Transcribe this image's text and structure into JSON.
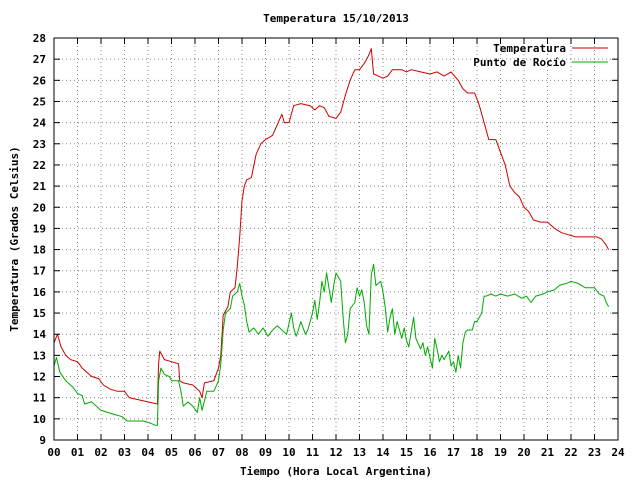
{
  "chart_data": {
    "type": "line",
    "title": "Temperatura 15/10/2013",
    "xlabel": "Tiempo (Hora Local Argentina)",
    "ylabel": "Temperatura (Grados Celsius)",
    "xlim": [
      0,
      24
    ],
    "ylim": [
      9,
      28
    ],
    "grid": true,
    "legend_position": "top-right",
    "x_tick_labels": [
      "00",
      "01",
      "02",
      "03",
      "04",
      "05",
      "06",
      "07",
      "08",
      "09",
      "10",
      "11",
      "12",
      "13",
      "14",
      "15",
      "16",
      "17",
      "18",
      "19",
      "20",
      "21",
      "22",
      "23",
      "24"
    ],
    "y_tick_labels": [
      "9",
      "10",
      "11",
      "12",
      "13",
      "14",
      "15",
      "16",
      "17",
      "18",
      "19",
      "20",
      "21",
      "22",
      "23",
      "24",
      "25",
      "26",
      "27",
      "28"
    ],
    "series": [
      {
        "name": "Temperatura",
        "color": "#cc0000",
        "points": [
          [
            0.0,
            13.6
          ],
          [
            0.15,
            14.0
          ],
          [
            0.3,
            13.4
          ],
          [
            0.5,
            13.0
          ],
          [
            0.7,
            12.8
          ],
          [
            1.0,
            12.7
          ],
          [
            1.2,
            12.4
          ],
          [
            1.4,
            12.2
          ],
          [
            1.6,
            12.0
          ],
          [
            1.9,
            11.9
          ],
          [
            2.1,
            11.6
          ],
          [
            2.4,
            11.4
          ],
          [
            2.7,
            11.3
          ],
          [
            3.0,
            11.3
          ],
          [
            3.2,
            11.0
          ],
          [
            3.6,
            10.9
          ],
          [
            4.0,
            10.8
          ],
          [
            4.4,
            10.7
          ],
          [
            4.45,
            12.6
          ],
          [
            4.5,
            13.2
          ],
          [
            4.7,
            12.8
          ],
          [
            5.0,
            12.7
          ],
          [
            5.3,
            12.6
          ],
          [
            5.35,
            11.8
          ],
          [
            5.5,
            11.7
          ],
          [
            5.9,
            11.6
          ],
          [
            6.2,
            11.3
          ],
          [
            6.3,
            11.0
          ],
          [
            6.4,
            11.7
          ],
          [
            6.8,
            11.8
          ],
          [
            7.0,
            12.4
          ],
          [
            7.1,
            13.0
          ],
          [
            7.2,
            14.9
          ],
          [
            7.4,
            15.3
          ],
          [
            7.5,
            16.0
          ],
          [
            7.7,
            16.2
          ],
          [
            7.8,
            17.2
          ],
          [
            7.9,
            18.6
          ],
          [
            8.0,
            20.3
          ],
          [
            8.1,
            21.0
          ],
          [
            8.2,
            21.3
          ],
          [
            8.4,
            21.4
          ],
          [
            8.6,
            22.5
          ],
          [
            8.8,
            23.0
          ],
          [
            9.0,
            23.2
          ],
          [
            9.3,
            23.4
          ],
          [
            9.5,
            23.9
          ],
          [
            9.7,
            24.4
          ],
          [
            9.8,
            24.0
          ],
          [
            10.0,
            24.0
          ],
          [
            10.2,
            24.8
          ],
          [
            10.5,
            24.9
          ],
          [
            10.9,
            24.8
          ],
          [
            11.1,
            24.6
          ],
          [
            11.3,
            24.8
          ],
          [
            11.5,
            24.7
          ],
          [
            11.7,
            24.3
          ],
          [
            12.0,
            24.2
          ],
          [
            12.2,
            24.5
          ],
          [
            12.4,
            25.3
          ],
          [
            12.6,
            26.0
          ],
          [
            12.8,
            26.5
          ],
          [
            13.0,
            26.5
          ],
          [
            13.2,
            26.8
          ],
          [
            13.3,
            27.0
          ],
          [
            13.4,
            27.2
          ],
          [
            13.5,
            27.5
          ],
          [
            13.6,
            26.3
          ],
          [
            13.8,
            26.2
          ],
          [
            14.0,
            26.1
          ],
          [
            14.2,
            26.2
          ],
          [
            14.4,
            26.5
          ],
          [
            14.8,
            26.5
          ],
          [
            15.0,
            26.4
          ],
          [
            15.2,
            26.5
          ],
          [
            15.6,
            26.4
          ],
          [
            16.0,
            26.3
          ],
          [
            16.3,
            26.4
          ],
          [
            16.6,
            26.2
          ],
          [
            16.9,
            26.4
          ],
          [
            17.2,
            26.0
          ],
          [
            17.4,
            25.6
          ],
          [
            17.6,
            25.4
          ],
          [
            17.9,
            25.4
          ],
          [
            18.1,
            24.8
          ],
          [
            18.3,
            24.0
          ],
          [
            18.5,
            23.2
          ],
          [
            18.8,
            23.2
          ],
          [
            19.0,
            22.6
          ],
          [
            19.2,
            22.0
          ],
          [
            19.4,
            21.0
          ],
          [
            19.6,
            20.7
          ],
          [
            19.8,
            20.5
          ],
          [
            20.0,
            20.0
          ],
          [
            20.2,
            19.8
          ],
          [
            20.4,
            19.4
          ],
          [
            20.7,
            19.3
          ],
          [
            21.0,
            19.3
          ],
          [
            21.3,
            19.0
          ],
          [
            21.6,
            18.8
          ],
          [
            21.9,
            18.7
          ],
          [
            22.2,
            18.6
          ],
          [
            22.5,
            18.6
          ],
          [
            22.8,
            18.6
          ],
          [
            23.1,
            18.6
          ],
          [
            23.3,
            18.5
          ],
          [
            23.5,
            18.2
          ],
          [
            23.6,
            18.0
          ]
        ]
      },
      {
        "name": "Punto de Rocío",
        "color": "#00aa00",
        "points": [
          [
            0.0,
            12.5
          ],
          [
            0.1,
            12.9
          ],
          [
            0.25,
            12.2
          ],
          [
            0.5,
            11.8
          ],
          [
            0.8,
            11.5
          ],
          [
            1.0,
            11.2
          ],
          [
            1.2,
            11.1
          ],
          [
            1.3,
            10.7
          ],
          [
            1.6,
            10.8
          ],
          [
            1.8,
            10.6
          ],
          [
            2.0,
            10.4
          ],
          [
            2.3,
            10.3
          ],
          [
            2.6,
            10.2
          ],
          [
            2.9,
            10.1
          ],
          [
            3.1,
            9.9
          ],
          [
            3.5,
            9.9
          ],
          [
            3.8,
            9.9
          ],
          [
            4.1,
            9.8
          ],
          [
            4.3,
            9.7
          ],
          [
            4.4,
            9.7
          ],
          [
            4.45,
            11.8
          ],
          [
            4.55,
            12.4
          ],
          [
            4.7,
            12.1
          ],
          [
            4.9,
            12.0
          ],
          [
            5.0,
            11.8
          ],
          [
            5.3,
            11.8
          ],
          [
            5.4,
            11.3
          ],
          [
            5.5,
            10.6
          ],
          [
            5.7,
            10.8
          ],
          [
            5.9,
            10.6
          ],
          [
            6.1,
            10.3
          ],
          [
            6.2,
            11.0
          ],
          [
            6.3,
            10.4
          ],
          [
            6.5,
            11.3
          ],
          [
            6.8,
            11.3
          ],
          [
            7.0,
            11.8
          ],
          [
            7.1,
            12.6
          ],
          [
            7.2,
            14.2
          ],
          [
            7.3,
            15.0
          ],
          [
            7.5,
            15.2
          ],
          [
            7.6,
            15.8
          ],
          [
            7.8,
            16.0
          ],
          [
            7.9,
            16.4
          ],
          [
            8.0,
            15.8
          ],
          [
            8.1,
            15.4
          ],
          [
            8.2,
            14.6
          ],
          [
            8.3,
            14.1
          ],
          [
            8.5,
            14.3
          ],
          [
            8.7,
            14.0
          ],
          [
            8.9,
            14.3
          ],
          [
            9.1,
            13.9
          ],
          [
            9.3,
            14.2
          ],
          [
            9.5,
            14.4
          ],
          [
            9.7,
            14.2
          ],
          [
            9.9,
            14.0
          ],
          [
            10.0,
            14.5
          ],
          [
            10.1,
            15.0
          ],
          [
            10.2,
            14.3
          ],
          [
            10.3,
            13.9
          ],
          [
            10.4,
            14.2
          ],
          [
            10.5,
            14.6
          ],
          [
            10.7,
            14.0
          ],
          [
            10.8,
            14.2
          ],
          [
            11.0,
            15.0
          ],
          [
            11.1,
            15.6
          ],
          [
            11.2,
            14.7
          ],
          [
            11.3,
            15.5
          ],
          [
            11.4,
            16.5
          ],
          [
            11.5,
            16.0
          ],
          [
            11.6,
            16.9
          ],
          [
            11.7,
            16.2
          ],
          [
            11.8,
            15.5
          ],
          [
            11.9,
            16.3
          ],
          [
            12.0,
            16.9
          ],
          [
            12.2,
            16.5
          ],
          [
            12.3,
            14.8
          ],
          [
            12.4,
            13.6
          ],
          [
            12.5,
            14.0
          ],
          [
            12.6,
            15.2
          ],
          [
            12.8,
            15.5
          ],
          [
            12.9,
            16.2
          ],
          [
            13.0,
            15.8
          ],
          [
            13.1,
            16.1
          ],
          [
            13.2,
            15.5
          ],
          [
            13.3,
            14.4
          ],
          [
            13.4,
            14.0
          ],
          [
            13.5,
            16.8
          ],
          [
            13.6,
            17.3
          ],
          [
            13.7,
            16.3
          ],
          [
            13.9,
            16.5
          ],
          [
            14.0,
            16.0
          ],
          [
            14.1,
            15.2
          ],
          [
            14.2,
            14.1
          ],
          [
            14.3,
            14.8
          ],
          [
            14.4,
            15.2
          ],
          [
            14.5,
            14.0
          ],
          [
            14.6,
            14.6
          ],
          [
            14.8,
            13.8
          ],
          [
            14.9,
            14.3
          ],
          [
            15.0,
            13.7
          ],
          [
            15.1,
            13.4
          ],
          [
            15.3,
            14.8
          ],
          [
            15.4,
            13.8
          ],
          [
            15.6,
            13.3
          ],
          [
            15.7,
            13.6
          ],
          [
            15.8,
            13.0
          ],
          [
            15.9,
            13.4
          ],
          [
            16.0,
            12.9
          ],
          [
            16.1,
            12.4
          ],
          [
            16.2,
            13.8
          ],
          [
            16.3,
            13.3
          ],
          [
            16.4,
            12.7
          ],
          [
            16.5,
            13.0
          ],
          [
            16.6,
            12.8
          ],
          [
            16.8,
            13.2
          ],
          [
            16.9,
            12.5
          ],
          [
            17.0,
            12.7
          ],
          [
            17.1,
            12.2
          ],
          [
            17.2,
            13.0
          ],
          [
            17.3,
            12.4
          ],
          [
            17.4,
            13.6
          ],
          [
            17.5,
            14.1
          ],
          [
            17.6,
            14.2
          ],
          [
            17.8,
            14.2
          ],
          [
            17.9,
            14.6
          ],
          [
            18.0,
            14.6
          ],
          [
            18.2,
            15.0
          ],
          [
            18.3,
            15.8
          ],
          [
            18.4,
            15.8
          ],
          [
            18.6,
            15.9
          ],
          [
            18.8,
            15.8
          ],
          [
            19.0,
            15.9
          ],
          [
            19.3,
            15.8
          ],
          [
            19.6,
            15.9
          ],
          [
            19.9,
            15.7
          ],
          [
            20.1,
            15.8
          ],
          [
            20.3,
            15.5
          ],
          [
            20.5,
            15.8
          ],
          [
            20.8,
            15.9
          ],
          [
            21.0,
            16.0
          ],
          [
            21.3,
            16.1
          ],
          [
            21.5,
            16.3
          ],
          [
            21.8,
            16.4
          ],
          [
            22.0,
            16.5
          ],
          [
            22.3,
            16.4
          ],
          [
            22.6,
            16.2
          ],
          [
            23.0,
            16.2
          ],
          [
            23.2,
            15.9
          ],
          [
            23.4,
            15.8
          ],
          [
            23.5,
            15.5
          ],
          [
            23.6,
            15.3
          ]
        ]
      }
    ]
  }
}
